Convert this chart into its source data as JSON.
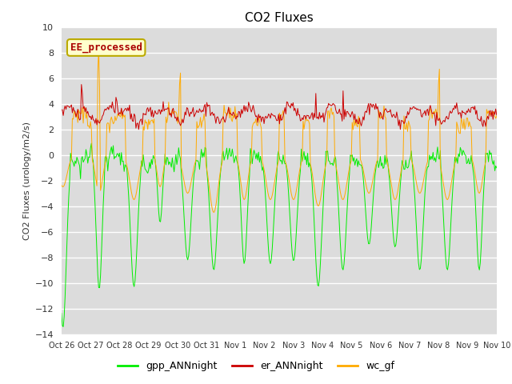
{
  "title": "CO2 Fluxes",
  "ylabel": "CO2 Fluxes (urology/m2/s)",
  "xlabel": "",
  "ylim": [
    -14,
    10
  ],
  "yticks": [
    -14,
    -12,
    -10,
    -8,
    -6,
    -4,
    -2,
    0,
    2,
    4,
    6,
    8,
    10
  ],
  "bg_color": "#dcdcdc",
  "plot_bg_color": "#dcdcdc",
  "line_colors": {
    "gpp": "#00ee00",
    "er": "#cc0000",
    "wc": "#ffaa00"
  },
  "legend_label": "EE_processed",
  "series_labels": [
    "gpp_ANNnight",
    "er_ANNnight",
    "wc_gf"
  ],
  "xticklabels": [
    "Oct 26",
    "Oct 27",
    "Oct 28",
    "Oct 29",
    "Oct 30",
    "Oct 31",
    "Nov 1",
    "Nov 2",
    "Nov 3",
    "Nov 4",
    "Nov 5",
    "Nov 6",
    "Nov 7",
    "Nov 8",
    "Nov 9",
    "Nov 10"
  ],
  "n_points": 480,
  "figsize": [
    6.4,
    4.8
  ],
  "dpi": 100
}
